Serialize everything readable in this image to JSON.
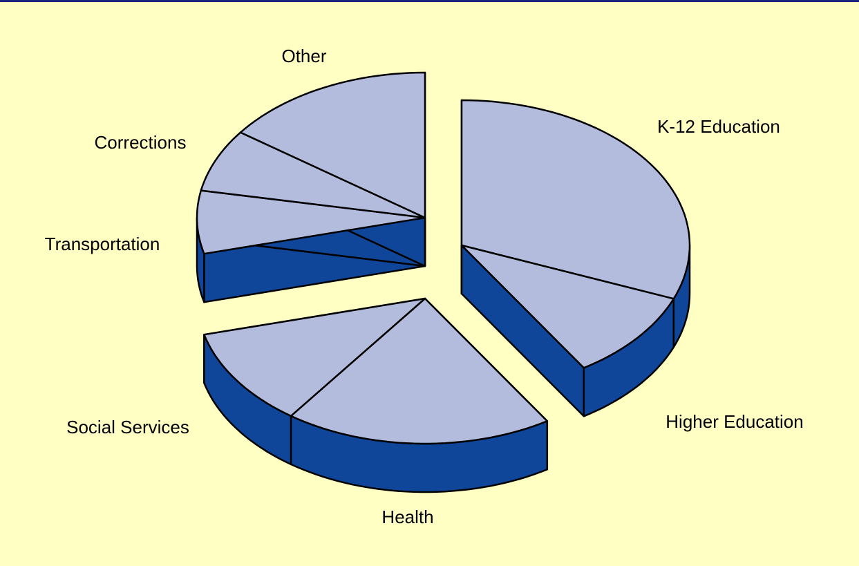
{
  "chart_data": {
    "type": "pie",
    "categories": [
      "K-12 Education",
      "Higher Education",
      "Health",
      "Social Services",
      "Transportation",
      "Corrections",
      "Other"
    ],
    "values": [
      31,
      10,
      19,
      11,
      7,
      7,
      15
    ],
    "color": "#b3bcdd",
    "side_color": "#0f4699"
  }
}
